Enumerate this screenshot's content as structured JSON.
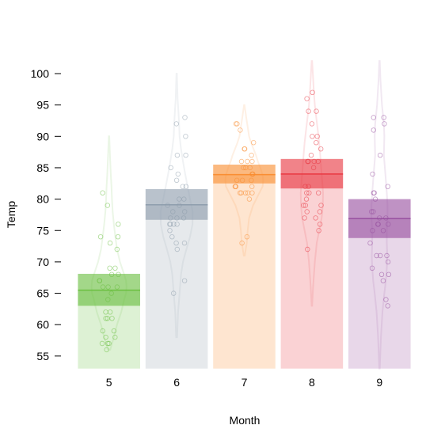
{
  "chart_data": {
    "type": "bar",
    "xlabel": "Month",
    "ylabel": "Temp",
    "ylim": [
      53,
      102
    ],
    "yticks": [
      55,
      60,
      65,
      70,
      75,
      80,
      85,
      90,
      95,
      100
    ],
    "grid": false,
    "categories": [
      "5",
      "6",
      "7",
      "8",
      "9"
    ],
    "colors": [
      "#66bd3a",
      "#8b9aaa",
      "#f98a2b",
      "#e8303a",
      "#944a9c"
    ],
    "values": [
      65.5,
      79.1,
      83.9,
      84.0,
      76.9
    ],
    "ci": [
      [
        63.0,
        68.1
      ],
      [
        76.7,
        81.6
      ],
      [
        82.5,
        85.5
      ],
      [
        81.7,
        86.4
      ],
      [
        73.8,
        80.0
      ]
    ],
    "points": [
      [
        67,
        72,
        74,
        62,
        56,
        66,
        65,
        59,
        61,
        69,
        74,
        69,
        66,
        68,
        58,
        64,
        66,
        57,
        68,
        62,
        59,
        73,
        61,
        61,
        57,
        58,
        57,
        67,
        81,
        79,
        76
      ],
      [
        78,
        74,
        67,
        84,
        85,
        79,
        82,
        87,
        90,
        87,
        93,
        92,
        82,
        80,
        79,
        77,
        72,
        65,
        73,
        76,
        77,
        76,
        76,
        76,
        75,
        78,
        73,
        80,
        77,
        83
      ],
      [
        84,
        85,
        81,
        84,
        83,
        83,
        88,
        92,
        92,
        89,
        82,
        73,
        81,
        91,
        80,
        81,
        82,
        84,
        87,
        85,
        74,
        81,
        82,
        86,
        85,
        82,
        86,
        88,
        86,
        83,
        81
      ],
      [
        81,
        81,
        82,
        86,
        85,
        87,
        89,
        90,
        90,
        92,
        86,
        86,
        82,
        80,
        79,
        77,
        79,
        76,
        78,
        78,
        77,
        72,
        75,
        79,
        81,
        86,
        88,
        97,
        94,
        96,
        94
      ],
      [
        91,
        92,
        93,
        93,
        87,
        84,
        80,
        78,
        75,
        73,
        81,
        76,
        77,
        71,
        71,
        78,
        67,
        76,
        68,
        82,
        64,
        71,
        81,
        69,
        63,
        70,
        77,
        75,
        76,
        68
      ]
    ],
    "violin": [
      {
        "min": 56,
        "max": 90,
        "mode": 66,
        "widths": [
          [
            56,
            0.05
          ],
          [
            58,
            0.2
          ],
          [
            60,
            0.33
          ],
          [
            62,
            0.5
          ],
          [
            64,
            0.62
          ],
          [
            65,
            0.7
          ],
          [
            66,
            0.72
          ],
          [
            67,
            0.7
          ],
          [
            68,
            0.62
          ],
          [
            70,
            0.45
          ],
          [
            72,
            0.33
          ],
          [
            74,
            0.26
          ],
          [
            76,
            0.2
          ],
          [
            78,
            0.15
          ],
          [
            80,
            0.12
          ],
          [
            82,
            0.1
          ],
          [
            84,
            0.07
          ],
          [
            87,
            0.04
          ],
          [
            90,
            0.01
          ]
        ]
      },
      {
        "min": 58,
        "max": 100,
        "mode": 76,
        "widths": [
          [
            58,
            0.02
          ],
          [
            62,
            0.06
          ],
          [
            65,
            0.12
          ],
          [
            68,
            0.18
          ],
          [
            70,
            0.26
          ],
          [
            72,
            0.4
          ],
          [
            74,
            0.55
          ],
          [
            76,
            0.65
          ],
          [
            78,
            0.66
          ],
          [
            80,
            0.55
          ],
          [
            82,
            0.45
          ],
          [
            84,
            0.35
          ],
          [
            86,
            0.26
          ],
          [
            88,
            0.18
          ],
          [
            90,
            0.12
          ],
          [
            92,
            0.1
          ],
          [
            94,
            0.07
          ],
          [
            96,
            0.04
          ],
          [
            100,
            0.01
          ]
        ]
      },
      {
        "min": 71,
        "max": 95,
        "mode": 83,
        "widths": [
          [
            71,
            0.02
          ],
          [
            73,
            0.1
          ],
          [
            75,
            0.14
          ],
          [
            77,
            0.2
          ],
          [
            79,
            0.36
          ],
          [
            81,
            0.62
          ],
          [
            82,
            0.75
          ],
          [
            83,
            0.78
          ],
          [
            84,
            0.74
          ],
          [
            85,
            0.66
          ],
          [
            86,
            0.56
          ],
          [
            87,
            0.48
          ],
          [
            88,
            0.38
          ],
          [
            89,
            0.28
          ],
          [
            90,
            0.2
          ],
          [
            92,
            0.12
          ],
          [
            93,
            0.08
          ],
          [
            95,
            0.01
          ]
        ]
      },
      {
        "min": 63,
        "max": 102,
        "mode": 80,
        "widths": [
          [
            63,
            0.01
          ],
          [
            66,
            0.05
          ],
          [
            70,
            0.12
          ],
          [
            73,
            0.2
          ],
          [
            75,
            0.3
          ],
          [
            77,
            0.4
          ],
          [
            79,
            0.45
          ],
          [
            81,
            0.46
          ],
          [
            83,
            0.42
          ],
          [
            85,
            0.38
          ],
          [
            87,
            0.34
          ],
          [
            89,
            0.3
          ],
          [
            91,
            0.24
          ],
          [
            93,
            0.18
          ],
          [
            95,
            0.12
          ],
          [
            97,
            0.08
          ],
          [
            100,
            0.04
          ],
          [
            102,
            0.01
          ]
        ]
      },
      {
        "min": 53,
        "max": 102,
        "mode": 72,
        "widths": [
          [
            53,
            0.01
          ],
          [
            58,
            0.06
          ],
          [
            62,
            0.12
          ],
          [
            65,
            0.2
          ],
          [
            67,
            0.26
          ],
          [
            69,
            0.3
          ],
          [
            71,
            0.32
          ],
          [
            73,
            0.3
          ],
          [
            75,
            0.3
          ],
          [
            77,
            0.33
          ],
          [
            79,
            0.33
          ],
          [
            81,
            0.3
          ],
          [
            84,
            0.24
          ],
          [
            87,
            0.18
          ],
          [
            90,
            0.2
          ],
          [
            92,
            0.18
          ],
          [
            95,
            0.1
          ],
          [
            99,
            0.04
          ],
          [
            102,
            0.01
          ]
        ]
      }
    ]
  }
}
